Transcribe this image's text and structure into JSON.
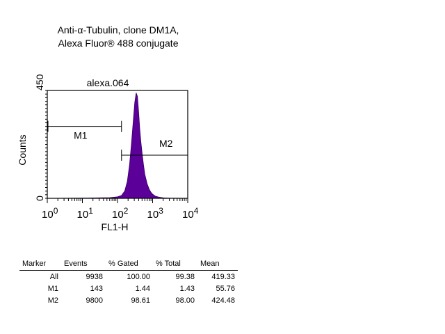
{
  "figure": {
    "title_line1": "Anti-α-Tubulin, clone DM1A,",
    "title_line2": "Alexa Fluor®  488 conjugate"
  },
  "chart_data": {
    "type": "area",
    "title": "alexa.064",
    "xlabel": "FL1-H",
    "ylabel": "Counts",
    "x_scale": "log",
    "xlim": [
      1,
      10000
    ],
    "ylim": [
      0,
      450
    ],
    "x_ticks": [
      {
        "base": "10",
        "exp": "0",
        "value": 1
      },
      {
        "base": "10",
        "exp": "1",
        "value": 10
      },
      {
        "base": "10",
        "exp": "2",
        "value": 100
      },
      {
        "base": "10",
        "exp": "3",
        "value": 1000
      },
      {
        "base": "10",
        "exp": "4",
        "value": 10000
      }
    ],
    "y_ticks": [
      {
        "label": "0",
        "value": 0
      },
      {
        "label": "450",
        "value": 450
      }
    ],
    "fill_color": "#5b0099",
    "series": [
      {
        "x": [
          1.0,
          10,
          30,
          60,
          100,
          130,
          160,
          190,
          220,
          250,
          280,
          310,
          340,
          370,
          400,
          430,
          460,
          500,
          550,
          600,
          700,
          800,
          900,
          1000,
          1200,
          1500,
          2000,
          3000,
          10000
        ],
        "y": [
          0,
          1,
          2,
          3,
          6,
          12,
          30,
          70,
          140,
          230,
          320,
          400,
          440,
          425,
          360,
          290,
          240,
          190,
          140,
          100,
          60,
          38,
          25,
          17,
          9,
          5,
          2,
          1,
          0
        ]
      }
    ],
    "markers": [
      {
        "name": "M1",
        "range": [
          1,
          130
        ],
        "y": 300
      },
      {
        "name": "M2",
        "range": [
          130,
          10000
        ],
        "y": 180
      }
    ]
  },
  "stats_table": {
    "headers": [
      "Marker",
      "Events",
      "% Gated",
      "% Total",
      "Mean"
    ],
    "rows": [
      [
        "All",
        "9938",
        "100.00",
        "99.38",
        "419.33"
      ],
      [
        "M1",
        "143",
        "1.44",
        "1.43",
        "55.76"
      ],
      [
        "M2",
        "9800",
        "98.61",
        "98.00",
        "424.48"
      ]
    ]
  }
}
